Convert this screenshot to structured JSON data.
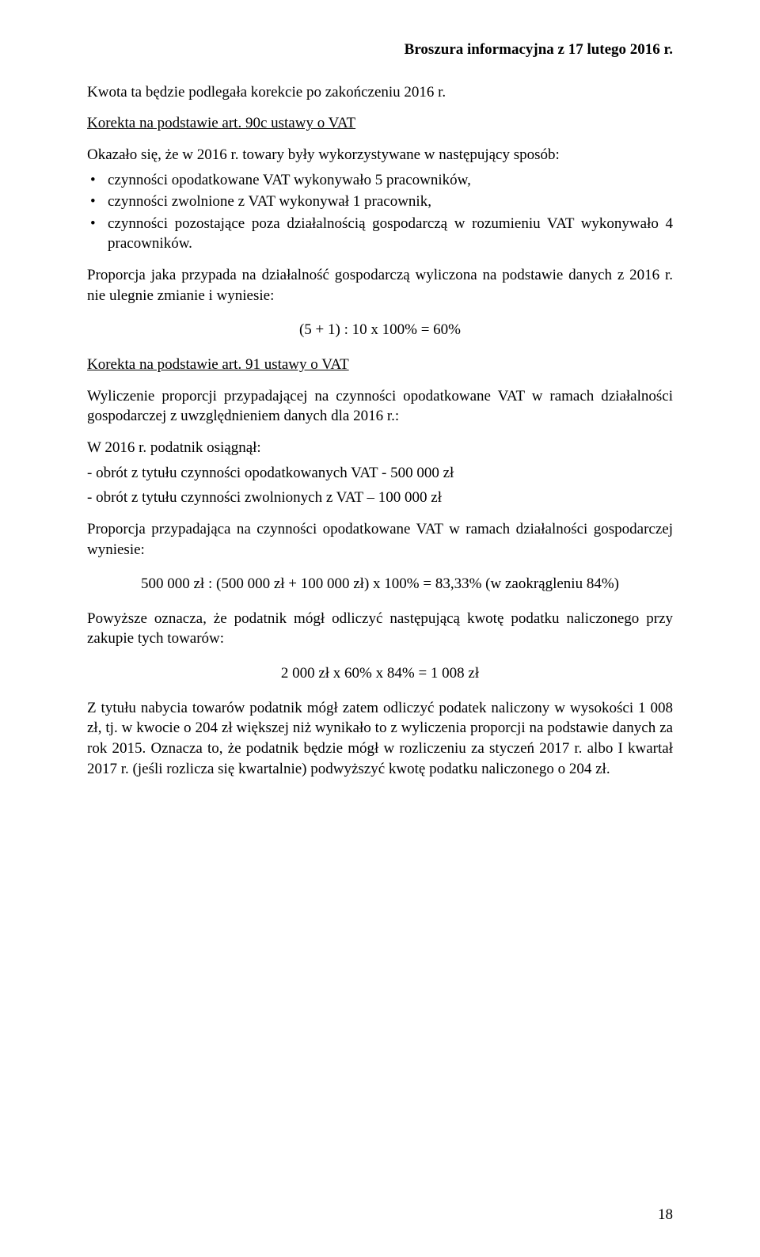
{
  "header": {
    "title": "Broszura informacyjna z 17 lutego 2016 r."
  },
  "p1": "Kwota ta będzie podlegała korekcie po zakończeniu 2016 r.",
  "p2a": "Korekta na podstawie art. 90c ustawy o VAT",
  "p3": "Okazało się, że w 2016 r. towary były wykorzystywane w następujący sposób:",
  "bullets1": {
    "b1": "czynności opodatkowane VAT wykonywało 5 pracowników,",
    "b2": "czynności zwolnione z VAT wykonywał 1 pracownik,",
    "b3": "czynności pozostające poza działalnością gospodarczą w rozumieniu VAT wykonywało 4 pracowników."
  },
  "p4": "Proporcja jaka przypada na działalność gospodarczą wyliczona na podstawie danych z 2016 r. nie ulegnie zmianie i wyniesie:",
  "eq1": "(5 + 1) : 10 x 100% = 60%",
  "p5a": "Korekta na podstawie art. 91 ustawy o VAT",
  "p6": "Wyliczenie proporcji przypadającej na czynności opodatkowane VAT w ramach działalności gospodarczej z uwzględnieniem danych dla 2016 r.:",
  "p7": "W 2016 r. podatnik osiągnął:",
  "p7a": "- obrót z tytułu czynności opodatkowanych VAT - 500 000 zł",
  "p7b": "- obrót z tytułu czynności zwolnionych z VAT – 100 000 zł",
  "p8": "Proporcja przypadająca na czynności opodatkowane VAT w ramach działalności gospodarczej wyniesie:",
  "eq2": "500 000 zł : (500 000 zł + 100 000 zł) x 100% = 83,33% (w zaokrągleniu 84%)",
  "p9": "Powyższe oznacza, że podatnik mógł odliczyć następującą kwotę podatku naliczonego przy zakupie tych towarów:",
  "eq3": "2 000 zł x 60% x 84% = 1 008 zł",
  "p10": "Z tytułu nabycia towarów podatnik mógł zatem odliczyć podatek naliczony w wysokości 1 008 zł, tj. w kwocie o 204 zł większej niż wynikało to z wyliczenia proporcji na podstawie danych za rok 2015. Oznacza to, że podatnik będzie mógł w rozliczeniu za styczeń 2017 r. albo I kwartał 2017 r. (jeśli rozlicza się kwartalnie) podwyższyć kwotę podatku naliczonego o 204 zł.",
  "pagenum": "18"
}
